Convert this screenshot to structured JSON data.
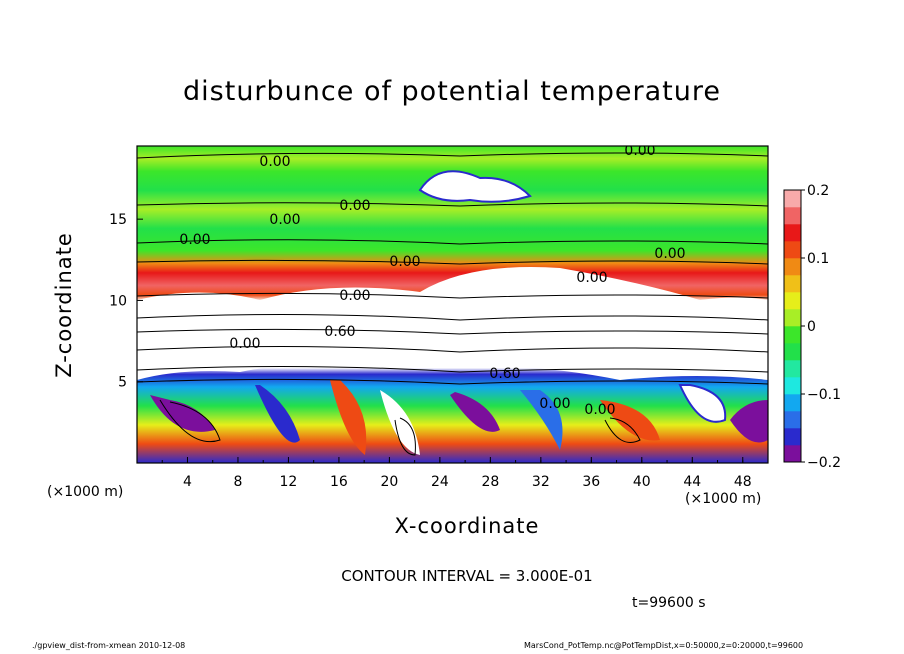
{
  "footer": {
    "left": "./gpview_dist-from-xmean  2010-12-08",
    "right": "MarsCond_PotTemp.nc@PotTempDist,x=0:50000,z=0:20000,t=99600"
  },
  "chart_data": {
    "type": "heatmap",
    "title": "disturbunce of potential temperature",
    "xlabel": "X-coordinate",
    "ylabel": "Z-coordinate",
    "x_unit": "(×1000 m)",
    "z_unit": "(×1000 m)",
    "xlim": [
      0,
      50
    ],
    "ylim": [
      0,
      19.5
    ],
    "x_ticks": [
      "4",
      "8",
      "12",
      "16",
      "20",
      "24",
      "28",
      "32",
      "36",
      "40",
      "44",
      "48"
    ],
    "z_ticks": [
      "5",
      "10",
      "15"
    ],
    "colorbar": {
      "range": [
        -0.2,
        0.2
      ],
      "ticks": [
        "0.2",
        "0.1",
        "0",
        "−0.1",
        "−0.2"
      ],
      "colors": [
        "#7b0f9c",
        "#2a2acd",
        "#2a6ee8",
        "#12a8f0",
        "#1ee8e0",
        "#22e8a0",
        "#22e04a",
        "#3ce62a",
        "#a8ee26",
        "#e6ee1a",
        "#f0c018",
        "#f08a14",
        "#ee4a14",
        "#e81818",
        "#f06464",
        "#f8aaaa"
      ]
    },
    "contour_labels": [
      "0.00",
      "0.00",
      "0.00",
      "0.00",
      "0.00",
      "0.00",
      "0.00",
      "0.00",
      "0.00",
      "0.60",
      "0.60",
      "0.00",
      "0.00",
      "0.00"
    ],
    "contour_interval": "CONTOUR INTERVAL = 3.000E-01",
    "time_label": "t=99600 s"
  }
}
